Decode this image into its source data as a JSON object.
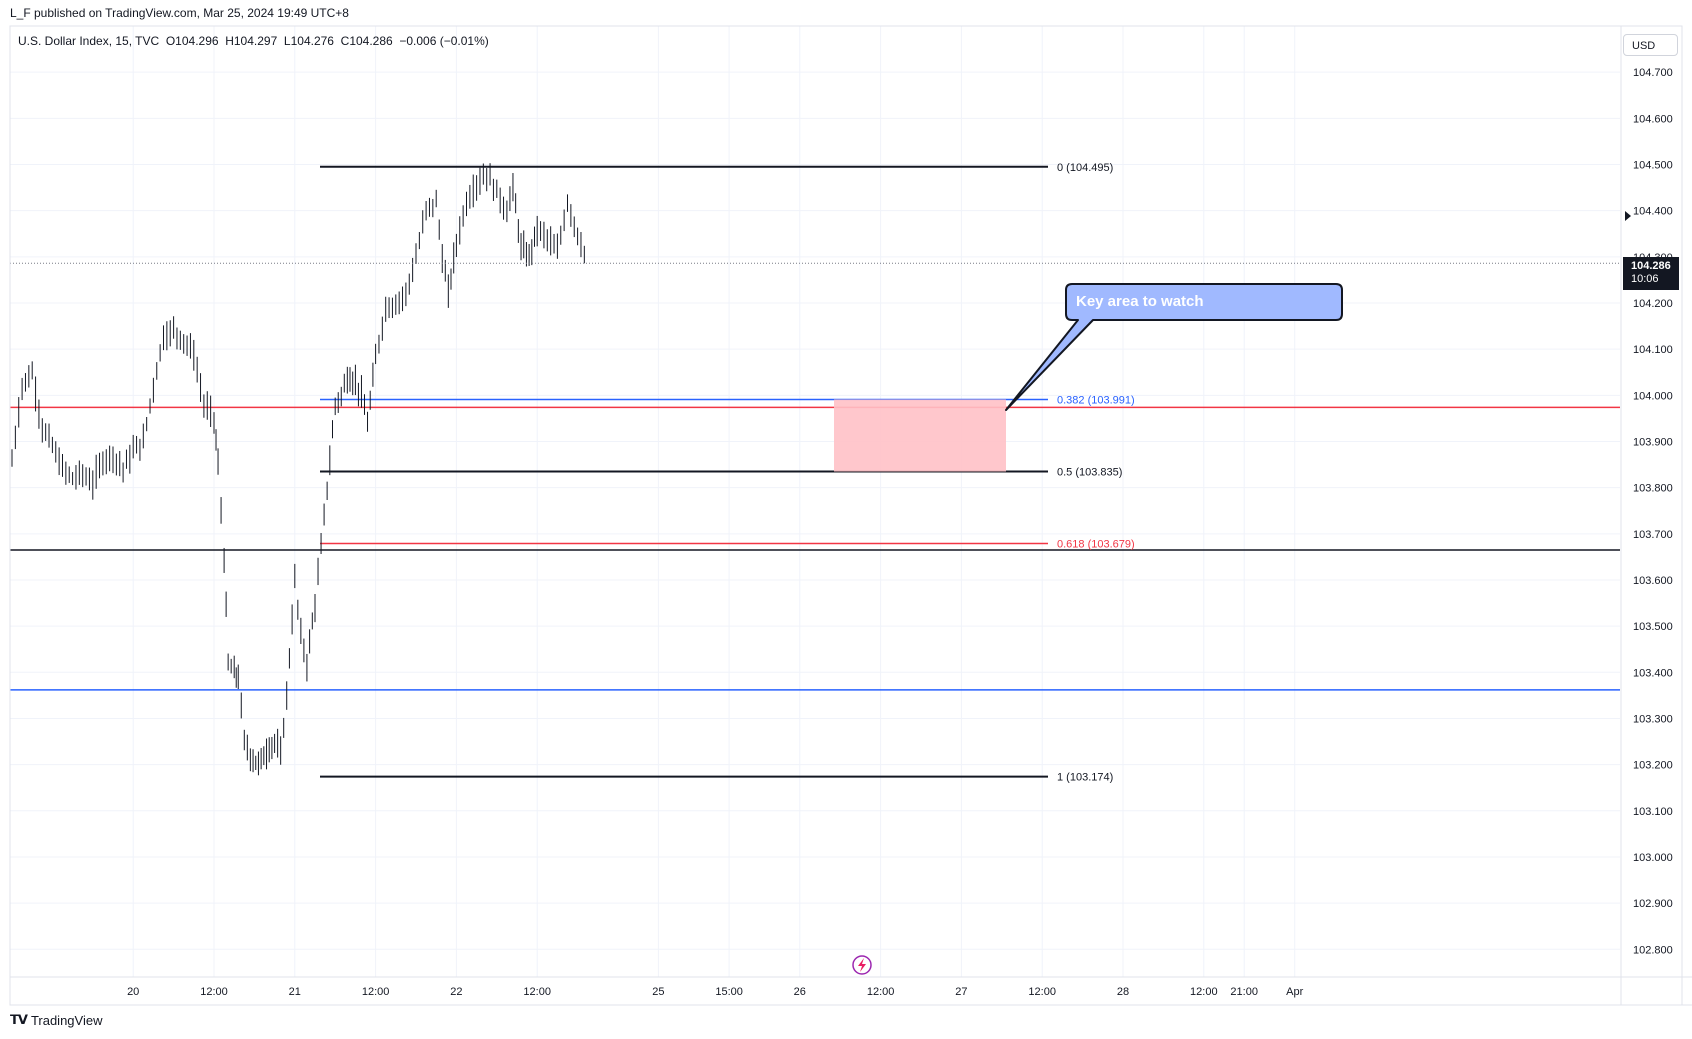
{
  "header": {
    "published": "L_F published on TradingView.com, Mar 25, 2024 19:49 UTC+8",
    "legend": "U.S. Dollar Index, 15, TVC  O104.296  H104.297  L104.276  C104.286  −0.006 (−0.01%)"
  },
  "price_axis": {
    "currency": "USD",
    "last_price": "104.286",
    "countdown": "10:06"
  },
  "callout": {
    "text": "Key area to watch",
    "color": "#a0b9ff",
    "border": "#131722"
  },
  "footer": {
    "brand": "TradingView"
  },
  "colors": {
    "red_line": "#f23645",
    "blue_line": "#2962ff",
    "zone": "#ffc1c7",
    "candle": "#131722"
  },
  "chart_data": {
    "type": "ohlc",
    "symbol": "U.S. Dollar Index",
    "interval": "15",
    "ylim": [
      102.74,
      104.8
    ],
    "y_ticks": [
      "104.700",
      "104.600",
      "104.500",
      "104.400",
      "104.300",
      "104.200",
      "104.100",
      "104.000",
      "103.900",
      "103.800",
      "103.700",
      "103.600",
      "103.500",
      "103.400",
      "103.300",
      "103.200",
      "103.100",
      "103.000",
      "102.900",
      "102.800"
    ],
    "x_ticks": [
      {
        "label": "20",
        "t": 0.6
      },
      {
        "label": "12:00",
        "t": 1.0
      },
      {
        "label": "21",
        "t": 1.4
      },
      {
        "label": "12:00",
        "t": 1.8
      },
      {
        "label": "22",
        "t": 2.2
      },
      {
        "label": "12:00",
        "t": 2.6
      },
      {
        "label": "25",
        "t": 3.2
      },
      {
        "label": "15:00",
        "t": 3.55
      },
      {
        "label": "26",
        "t": 3.9
      },
      {
        "label": "12:00",
        "t": 4.3
      },
      {
        "label": "27",
        "t": 4.7
      },
      {
        "label": "12:00",
        "t": 5.1
      },
      {
        "label": "28",
        "t": 5.5
      },
      {
        "label": "12:00",
        "t": 5.9
      },
      {
        "label": "21:00",
        "t": 6.1
      },
      {
        "label": "Apr",
        "t": 6.35
      }
    ],
    "price_path": [
      [
        0.0,
        103.86
      ],
      [
        0.05,
        104.02
      ],
      [
        0.1,
        104.05
      ],
      [
        0.15,
        103.93
      ],
      [
        0.2,
        103.89
      ],
      [
        0.25,
        103.84
      ],
      [
        0.3,
        103.82
      ],
      [
        0.35,
        103.83
      ],
      [
        0.4,
        103.81
      ],
      [
        0.45,
        103.86
      ],
      [
        0.5,
        103.87
      ],
      [
        0.55,
        103.84
      ],
      [
        0.6,
        103.88
      ],
      [
        0.65,
        103.9
      ],
      [
        0.7,
        104.02
      ],
      [
        0.75,
        104.13
      ],
      [
        0.8,
        104.14
      ],
      [
        0.85,
        104.12
      ],
      [
        0.9,
        104.09
      ],
      [
        0.95,
        103.98
      ],
      [
        1.0,
        103.95
      ],
      [
        1.02,
        103.85
      ],
      [
        1.05,
        103.65
      ],
      [
        1.07,
        103.42
      ],
      [
        1.1,
        103.4
      ],
      [
        1.12,
        103.39
      ],
      [
        1.15,
        103.25
      ],
      [
        1.18,
        103.22
      ],
      [
        1.22,
        103.2
      ],
      [
        1.26,
        103.23
      ],
      [
        1.3,
        103.25
      ],
      [
        1.33,
        103.22
      ],
      [
        1.36,
        103.35
      ],
      [
        1.4,
        103.6
      ],
      [
        1.43,
        103.48
      ],
      [
        1.46,
        103.42
      ],
      [
        1.5,
        103.55
      ],
      [
        1.53,
        103.67
      ],
      [
        1.56,
        103.8
      ],
      [
        1.6,
        103.98
      ],
      [
        1.63,
        104.0
      ],
      [
        1.66,
        104.04
      ],
      [
        1.7,
        104.03
      ],
      [
        1.73,
        104.0
      ],
      [
        1.76,
        103.94
      ],
      [
        1.8,
        104.08
      ],
      [
        1.85,
        104.19
      ],
      [
        1.9,
        104.2
      ],
      [
        1.95,
        104.22
      ],
      [
        2.0,
        104.3
      ],
      [
        2.05,
        104.4
      ],
      [
        2.1,
        104.42
      ],
      [
        2.13,
        104.3
      ],
      [
        2.16,
        104.22
      ],
      [
        2.2,
        104.33
      ],
      [
        2.25,
        104.42
      ],
      [
        2.3,
        104.46
      ],
      [
        2.35,
        104.48
      ],
      [
        2.4,
        104.44
      ],
      [
        2.45,
        104.4
      ],
      [
        2.48,
        104.45
      ],
      [
        2.52,
        104.32
      ],
      [
        2.56,
        104.3
      ],
      [
        2.6,
        104.36
      ],
      [
        2.65,
        104.34
      ],
      [
        2.7,
        104.31
      ],
      [
        2.75,
        104.42
      ],
      [
        2.8,
        104.35
      ],
      [
        2.85,
        104.29
      ]
    ],
    "horizontal_lines": [
      {
        "price": 103.974,
        "color": "red"
      },
      {
        "price": 103.665,
        "color": "black"
      },
      {
        "price": 103.362,
        "color": "blue"
      }
    ],
    "fibonacci": [
      {
        "label": "0 (104.495)",
        "price": 104.495,
        "color": "#131722"
      },
      {
        "label": "0.382 (103.991)",
        "price": 103.991,
        "color": "#2962ff"
      },
      {
        "label": "0.5 (103.835)",
        "price": 103.835,
        "color": "#131722"
      },
      {
        "label": "0.618 (103.679)",
        "price": 103.679,
        "color": "#f23645"
      },
      {
        "label": "1 (103.174)",
        "price": 103.174,
        "color": "#131722"
      }
    ],
    "zone": {
      "from_price": 103.991,
      "to_price": 103.835
    },
    "grid": true
  }
}
